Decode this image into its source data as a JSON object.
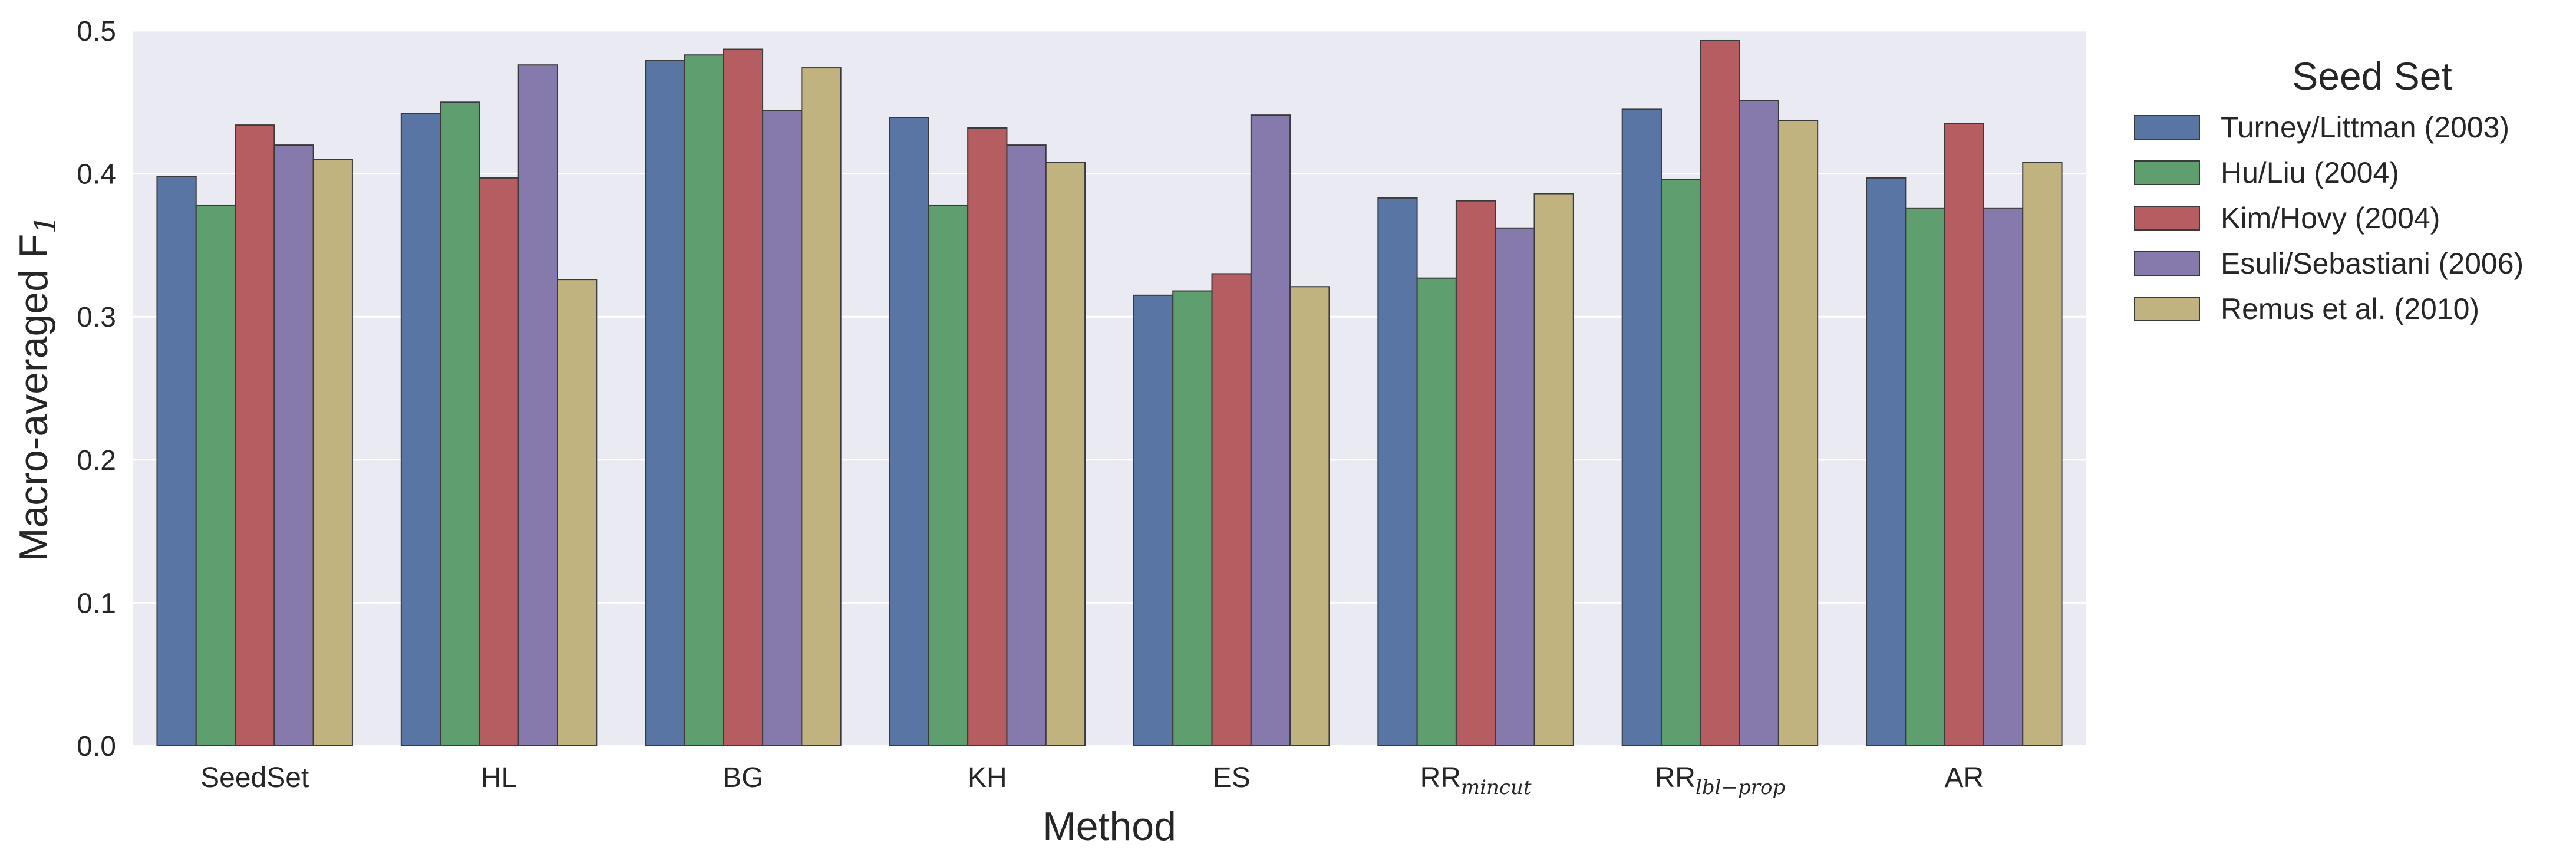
{
  "chart_data": {
    "type": "bar",
    "xlabel": "Method",
    "ylabel": "Macro-averaged F",
    "ylabel_subscript": "1",
    "ylim": [
      0,
      0.5
    ],
    "yticks": [
      "0.0",
      "0.1",
      "0.2",
      "0.3",
      "0.4",
      "0.5"
    ],
    "grid": true,
    "categories": [
      {
        "main": "SeedSet",
        "sub": ""
      },
      {
        "main": "HL",
        "sub": ""
      },
      {
        "main": "BG",
        "sub": ""
      },
      {
        "main": "KH",
        "sub": ""
      },
      {
        "main": "ES",
        "sub": ""
      },
      {
        "main": "RR",
        "sub": "mincut"
      },
      {
        "main": "RR",
        "sub": "lbl−prop"
      },
      {
        "main": "AR",
        "sub": ""
      }
    ],
    "legend": {
      "title": "Seed Set",
      "placement": "outside-right"
    },
    "series": [
      {
        "name": "Turney/Littman (2003)",
        "color": "#5875a4",
        "values": [
          0.398,
          0.442,
          0.479,
          0.439,
          0.315,
          0.383,
          0.445,
          0.397
        ]
      },
      {
        "name": "Hu/Liu (2004)",
        "color": "#5f9e6e",
        "values": [
          0.378,
          0.45,
          0.483,
          0.378,
          0.318,
          0.327,
          0.396,
          0.376
        ]
      },
      {
        "name": "Kim/Hovy (2004)",
        "color": "#b55d60",
        "values": [
          0.434,
          0.397,
          0.487,
          0.432,
          0.33,
          0.381,
          0.493,
          0.435
        ]
      },
      {
        "name": "Esuli/Sebastiani (2006)",
        "color": "#857aab",
        "values": [
          0.42,
          0.476,
          0.444,
          0.42,
          0.441,
          0.362,
          0.451,
          0.376
        ]
      },
      {
        "name": "Remus et al. (2010)",
        "color": "#c1b37f",
        "values": [
          0.41,
          0.326,
          0.474,
          0.408,
          0.321,
          0.386,
          0.437,
          0.408
        ]
      }
    ]
  }
}
